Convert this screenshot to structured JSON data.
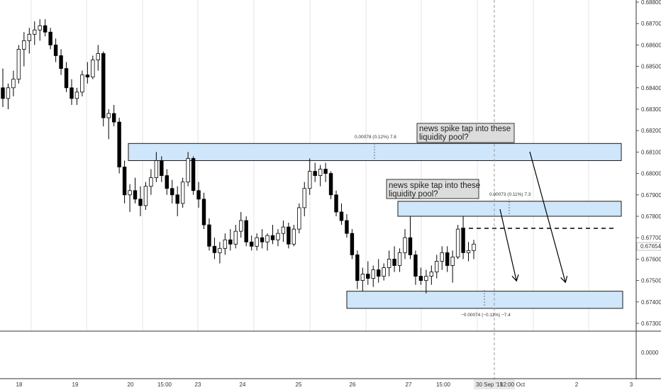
{
  "chart_data": {
    "type": "candlestick",
    "price_scale": {
      "range": [
        0.6726,
        0.6881
      ],
      "ticks": [
        "0.68800",
        "0.68700",
        "0.68600",
        "0.68500",
        "0.68400",
        "0.68300",
        "0.68200",
        "0.68100",
        "0.68000",
        "0.67900",
        "0.67800",
        "0.67700",
        "0.67600",
        "0.67500",
        "0.67400",
        "0.67300"
      ],
      "current_price": "0.67654"
    },
    "indicator_scale": {
      "ticks": [
        "0.0000"
      ]
    },
    "time_axis": [
      "18",
      "19",
      "20",
      "15:00",
      "23",
      "24",
      "25",
      "26",
      "27",
      "15:00",
      "30 Sep '19",
      "12:00",
      "Oct",
      "2",
      "3"
    ],
    "candles": [
      [
        0.684,
        0.6849,
        0.6831,
        0.6835
      ],
      [
        0.6835,
        0.6842,
        0.683,
        0.684
      ],
      [
        0.684,
        0.6848,
        0.6836,
        0.6844
      ],
      [
        0.6844,
        0.686,
        0.6842,
        0.6858
      ],
      [
        0.6858,
        0.6866,
        0.685,
        0.6862
      ],
      [
        0.6862,
        0.6868,
        0.6856,
        0.6865
      ],
      [
        0.6865,
        0.6871,
        0.686,
        0.6867
      ],
      [
        0.6867,
        0.6872,
        0.6862,
        0.6869
      ],
      [
        0.6869,
        0.6872,
        0.6864,
        0.6866
      ],
      [
        0.6866,
        0.6868,
        0.6858,
        0.686
      ],
      [
        0.686,
        0.6863,
        0.6852,
        0.6855
      ],
      [
        0.6855,
        0.6858,
        0.6846,
        0.6849
      ],
      [
        0.6849,
        0.6852,
        0.6838,
        0.684
      ],
      [
        0.684,
        0.6844,
        0.6832,
        0.6835
      ],
      [
        0.6835,
        0.684,
        0.6832,
        0.6838
      ],
      [
        0.6838,
        0.6848,
        0.6836,
        0.6846
      ],
      [
        0.6846,
        0.6852,
        0.6842,
        0.6845
      ],
      [
        0.6845,
        0.6855,
        0.6844,
        0.6853
      ],
      [
        0.6853,
        0.686,
        0.6848,
        0.6856
      ],
      [
        0.6856,
        0.6857,
        0.6822,
        0.6826
      ],
      [
        0.6826,
        0.683,
        0.6816,
        0.6828
      ],
      [
        0.6828,
        0.6832,
        0.6822,
        0.6824
      ],
      [
        0.6824,
        0.6826,
        0.68,
        0.6803
      ],
      [
        0.6803,
        0.6806,
        0.6786,
        0.679
      ],
      [
        0.679,
        0.6795,
        0.6782,
        0.6792
      ],
      [
        0.6792,
        0.6798,
        0.6786,
        0.6788
      ],
      [
        0.6788,
        0.6794,
        0.678,
        0.6785
      ],
      [
        0.6785,
        0.6796,
        0.6783,
        0.6794
      ],
      [
        0.6794,
        0.6802,
        0.679,
        0.6798
      ],
      [
        0.6798,
        0.681,
        0.6796,
        0.6806
      ],
      [
        0.6806,
        0.6808,
        0.6796,
        0.6799
      ],
      [
        0.6799,
        0.6802,
        0.679,
        0.6793
      ],
      [
        0.6793,
        0.6797,
        0.6786,
        0.679
      ],
      [
        0.679,
        0.6794,
        0.678,
        0.6786
      ],
      [
        0.6786,
        0.6798,
        0.6784,
        0.6796
      ],
      [
        0.6796,
        0.681,
        0.6794,
        0.6807
      ],
      [
        0.6807,
        0.6808,
        0.679,
        0.6792
      ],
      [
        0.6792,
        0.6796,
        0.6784,
        0.6788
      ],
      [
        0.6788,
        0.6791,
        0.6774,
        0.6776
      ],
      [
        0.6776,
        0.6779,
        0.6764,
        0.6766
      ],
      [
        0.6766,
        0.677,
        0.676,
        0.6763
      ],
      [
        0.6763,
        0.6768,
        0.6758,
        0.6765
      ],
      [
        0.6765,
        0.6772,
        0.6762,
        0.6769
      ],
      [
        0.6769,
        0.6774,
        0.6764,
        0.6767
      ],
      [
        0.6767,
        0.6776,
        0.6765,
        0.6773
      ],
      [
        0.6773,
        0.6782,
        0.677,
        0.6778
      ],
      [
        0.6778,
        0.678,
        0.6766,
        0.6768
      ],
      [
        0.6768,
        0.6771,
        0.6764,
        0.6766
      ],
      [
        0.6766,
        0.6772,
        0.6764,
        0.677
      ],
      [
        0.677,
        0.6774,
        0.6765,
        0.6768
      ],
      [
        0.6768,
        0.6772,
        0.6764,
        0.6771
      ],
      [
        0.6771,
        0.6776,
        0.6767,
        0.6769
      ],
      [
        0.6769,
        0.6774,
        0.6766,
        0.6772
      ],
      [
        0.6772,
        0.6778,
        0.6768,
        0.6775
      ],
      [
        0.6775,
        0.6777,
        0.6765,
        0.6767
      ],
      [
        0.6767,
        0.6776,
        0.6766,
        0.6774
      ],
      [
        0.6774,
        0.6786,
        0.6772,
        0.6784
      ],
      [
        0.6784,
        0.6796,
        0.678,
        0.6793
      ],
      [
        0.6793,
        0.6807,
        0.679,
        0.6801
      ],
      [
        0.6801,
        0.6805,
        0.6796,
        0.6799
      ],
      [
        0.6799,
        0.6804,
        0.6794,
        0.6802
      ],
      [
        0.6802,
        0.6805,
        0.6796,
        0.68
      ],
      [
        0.68,
        0.6801,
        0.6788,
        0.679
      ],
      [
        0.679,
        0.6792,
        0.678,
        0.6782
      ],
      [
        0.6782,
        0.6786,
        0.6776,
        0.6778
      ],
      [
        0.6778,
        0.6781,
        0.677,
        0.6772
      ],
      [
        0.6772,
        0.6774,
        0.676,
        0.6762
      ],
      [
        0.6762,
        0.6764,
        0.6746,
        0.675
      ],
      [
        0.675,
        0.6756,
        0.6745,
        0.6753
      ],
      [
        0.6753,
        0.6759,
        0.6748,
        0.6751
      ],
      [
        0.6751,
        0.6757,
        0.6747,
        0.6755
      ],
      [
        0.6755,
        0.676,
        0.6749,
        0.6752
      ],
      [
        0.6752,
        0.6758,
        0.675,
        0.6756
      ],
      [
        0.6756,
        0.6764,
        0.6752,
        0.676
      ],
      [
        0.676,
        0.6766,
        0.6754,
        0.6757
      ],
      [
        0.6757,
        0.6765,
        0.6754,
        0.6763
      ],
      [
        0.6763,
        0.6774,
        0.676,
        0.677
      ],
      [
        0.677,
        0.678,
        0.676,
        0.6762
      ],
      [
        0.6762,
        0.6764,
        0.6748,
        0.6752
      ],
      [
        0.6752,
        0.6756,
        0.6748,
        0.675
      ],
      [
        0.675,
        0.6755,
        0.6744,
        0.6752
      ],
      [
        0.6752,
        0.6757,
        0.6748,
        0.6754
      ],
      [
        0.6754,
        0.6762,
        0.6751,
        0.6759
      ],
      [
        0.6759,
        0.6766,
        0.6755,
        0.6763
      ],
      [
        0.6763,
        0.6766,
        0.6754,
        0.6757
      ],
      [
        0.6757,
        0.6764,
        0.6749,
        0.6761
      ],
      [
        0.6761,
        0.6776,
        0.676,
        0.6774
      ],
      [
        0.6774,
        0.678,
        0.676,
        0.6763
      ],
      [
        0.6763,
        0.6768,
        0.6759,
        0.6764
      ],
      [
        0.6764,
        0.6769,
        0.676,
        0.6767
      ]
    ],
    "zones": [
      {
        "name": "upper-liquidity-zone",
        "from": 0.6806,
        "to": 0.6814
      },
      {
        "name": "middle-liquidity-zone",
        "from": 0.678,
        "to": 0.6787
      },
      {
        "name": "lower-liquidity-zone",
        "from": 0.6737,
        "to": 0.6745
      }
    ],
    "dashed_level": 0.6774,
    "annotations": [
      {
        "id": "upper",
        "text": [
          "news spike tap into these",
          "liquidity pool?"
        ]
      },
      {
        "id": "middle",
        "text": [
          "news spike tap into these",
          "liquidity pool?"
        ]
      }
    ],
    "measures": [
      {
        "id": "upper",
        "text": "0.00078 (0.12%) 7.8"
      },
      {
        "id": "middle",
        "text": "0.00073 (0.11%) 7.3"
      },
      {
        "id": "lower",
        "text": "−0.00074 (−0.11%) −7.4"
      }
    ],
    "colors": {
      "zone_fill": "#cfe6fb",
      "zone_stroke": "#1a1a1a",
      "candle": "#000000",
      "label_bg": "#dcdcdc",
      "grid": "#e6e6e6",
      "current_price_bg": "#ffffff"
    }
  }
}
